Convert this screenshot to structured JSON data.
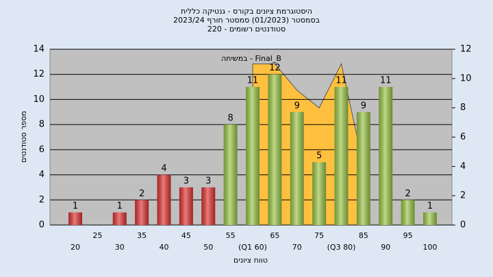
{
  "chart_data": {
    "type": "bar",
    "title": "היסטוגרמת ציונים בקורס - גנטיקה כללית",
    "subtitle": "בסמסטר  (01/2023)  סמסטר חורף  2023/24",
    "subtitle2": "סטודנטים רשומים - 220",
    "annotation": "במשיחה - Final_B",
    "x_label": "טווח ציונים",
    "y_label": "מספר סטודנטים",
    "categories": [
      "20",
      "25",
      "30",
      "35",
      "40",
      "45",
      "50",
      "55",
      "(Q1 60)",
      "65",
      "70",
      "75",
      "(Q3 80)",
      "85",
      "90",
      "95",
      "100"
    ],
    "values": [
      1,
      null,
      1,
      2,
      4,
      3,
      3,
      8,
      11,
      12,
      9,
      5,
      11,
      9,
      11,
      2,
      1
    ],
    "colors": [
      "#e03434",
      "#e03434",
      "#e03434",
      "#e03434",
      "#e03434",
      "#e03434",
      "#e03434",
      "#9cc648",
      "#9cc648",
      "#9cc648",
      "#9cc648",
      "#9cc648",
      "#9cc648",
      "#9cc648",
      "#9cc648",
      "#9cc648",
      "#9cc648"
    ],
    "area": {
      "axis": "y2",
      "color": "#ffc040",
      "values": [
        null,
        null,
        null,
        null,
        null,
        null,
        null,
        null,
        11,
        11,
        9.2,
        8,
        11,
        4,
        null,
        null,
        null
      ]
    },
    "ylim": [
      0,
      14
    ],
    "yticks": [
      0,
      2,
      4,
      6,
      8,
      10,
      12,
      14
    ],
    "y2lim": [
      0,
      12
    ],
    "y2ticks": [
      0,
      2,
      4,
      6,
      8,
      10,
      12
    ],
    "grid": true
  }
}
